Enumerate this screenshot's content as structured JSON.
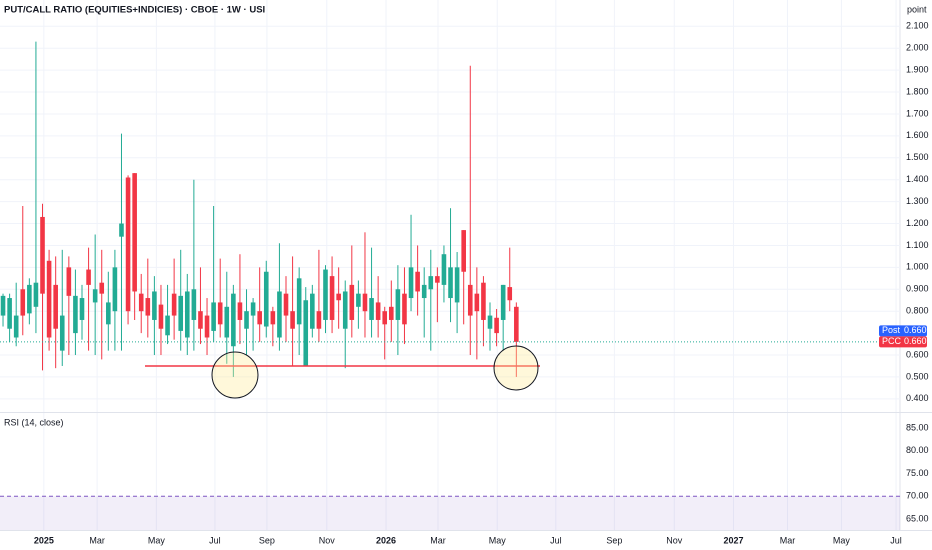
{
  "chart_data": [
    {
      "type": "candlestick",
      "title": "PUT/CALL RATIO (EQUITIES+INDICIES) · CBOE · 1W · USI",
      "y_unit": "point",
      "x": [
        0,
        1,
        2,
        3,
        4,
        5,
        6,
        7,
        8,
        9,
        10,
        11,
        12,
        13,
        14,
        15,
        16,
        17,
        18,
        19,
        20,
        21,
        22,
        23,
        24,
        25,
        26,
        27,
        28,
        29,
        30,
        31,
        32,
        33,
        34,
        35,
        36,
        37,
        38,
        39,
        40,
        41,
        42,
        43,
        44,
        45,
        46,
        47,
        48,
        49,
        50,
        51,
        52,
        53,
        54,
        55,
        56,
        57,
        58,
        59,
        60,
        61,
        62,
        63,
        64,
        65,
        66,
        67,
        68,
        69,
        70,
        71,
        72,
        73,
        74,
        75,
        76,
        77,
        78
      ],
      "open": [
        0.78,
        0.72,
        0.68,
        0.9,
        0.79,
        0.82,
        1.23,
        1.03,
        0.92,
        0.62,
        1.0,
        0.7,
        0.76,
        0.99,
        0.84,
        0.93,
        0.74,
        0.8,
        1.14,
        1.41,
        1.43,
        0.88,
        0.86,
        0.76,
        0.83,
        0.69,
        0.88,
        0.71,
        0.68,
        0.76,
        0.8,
        0.78,
        0.71,
        0.84,
        0.68,
        0.64,
        0.84,
        0.72,
        0.78,
        0.8,
        0.73,
        0.8,
        0.68,
        0.88,
        0.8,
        0.74,
        0.55,
        0.72,
        0.8,
        0.76,
        0.96,
        0.88,
        0.72,
        0.92,
        0.82,
        0.88,
        0.76,
        0.84,
        0.8,
        0.82,
        0.76,
        0.88,
        0.86,
        0.98,
        0.86,
        0.9,
        0.96,
        0.92,
        0.86,
        0.84,
        1.17,
        0.92,
        0.88,
        0.93,
        0.72,
        0.77,
        0.76,
        0.91,
        0.82
      ],
      "high": [
        0.88,
        0.88,
        0.93,
        1.28,
        0.95,
        2.03,
        1.29,
        1.08,
        1.05,
        1.08,
        1.05,
        0.99,
        0.92,
        1.09,
        1.15,
        1.08,
        0.98,
        1.08,
        1.61,
        1.42,
        1.43,
        0.97,
        1.04,
        0.96,
        0.92,
        0.92,
        1.04,
        1.08,
        0.97,
        1.4,
        1.0,
        0.86,
        1.28,
        1.04,
        0.98,
        0.92,
        1.06,
        0.9,
        0.86,
        1.0,
        1.03,
        0.82,
        1.11,
        0.96,
        1.05,
        1.0,
        0.91,
        0.92,
        1.08,
        1.01,
        1.05,
        1.0,
        0.94,
        1.1,
        0.94,
        1.16,
        1.09,
        0.96,
        0.82,
        0.94,
        1.01,
        1.0,
        1.24,
        1.1,
        1.0,
        1.08,
        1.0,
        1.1,
        1.27,
        1.07,
        1.17,
        1.92,
        1.0,
        0.96,
        0.84,
        0.81,
        0.92,
        1.09,
        0.84
      ],
      "low": [
        0.73,
        0.66,
        0.64,
        0.69,
        0.74,
        0.7,
        0.53,
        0.62,
        0.54,
        0.55,
        0.6,
        0.6,
        0.67,
        0.62,
        0.6,
        0.58,
        0.62,
        0.62,
        0.62,
        0.74,
        0.76,
        0.7,
        0.68,
        0.6,
        0.6,
        0.65,
        0.67,
        0.62,
        0.6,
        0.62,
        0.65,
        0.6,
        0.66,
        0.68,
        0.56,
        0.5,
        0.65,
        0.6,
        0.62,
        0.66,
        0.68,
        0.64,
        0.62,
        0.66,
        0.55,
        0.6,
        0.55,
        0.68,
        0.66,
        0.7,
        0.7,
        0.72,
        0.54,
        0.68,
        0.72,
        0.68,
        0.68,
        0.68,
        0.58,
        0.66,
        0.6,
        0.65,
        0.8,
        0.78,
        0.68,
        0.62,
        0.75,
        0.84,
        0.75,
        0.7,
        0.74,
        0.6,
        0.58,
        0.64,
        0.62,
        0.64,
        0.62,
        0.8,
        0.5
      ],
      "close": [
        0.87,
        0.86,
        0.78,
        0.78,
        0.92,
        0.93,
        0.88,
        0.68,
        0.72,
        0.78,
        0.87,
        0.87,
        0.86,
        0.92,
        0.9,
        0.88,
        0.84,
        1.0,
        1.2,
        0.8,
        0.89,
        0.8,
        0.78,
        0.89,
        0.72,
        0.78,
        0.78,
        0.87,
        0.89,
        0.9,
        0.72,
        0.68,
        0.84,
        0.74,
        0.82,
        0.88,
        0.76,
        0.8,
        0.84,
        0.74,
        0.98,
        0.74,
        0.89,
        0.78,
        0.72,
        0.95,
        0.85,
        0.88,
        0.72,
        0.99,
        0.76,
        0.85,
        0.89,
        0.76,
        0.88,
        0.8,
        0.86,
        0.76,
        0.74,
        0.76,
        0.9,
        0.74,
        1.0,
        0.89,
        0.92,
        0.96,
        0.93,
        1.06,
        1.0,
        1.0,
        0.98,
        0.78,
        0.8,
        0.76,
        0.78,
        0.7,
        0.92,
        0.85,
        0.66
      ],
      "up_color": "#22ab94",
      "down_color": "#f23645",
      "xlim": [
        -0.46,
        136.3
      ],
      "xticks": [
        {
          "value": 6.2,
          "label": "2025"
        },
        {
          "value": 14.3,
          "label": "Mar"
        },
        {
          "value": 23.3,
          "label": "May"
        },
        {
          "value": 32.2,
          "label": "Jul"
        },
        {
          "value": 40.1,
          "label": "Sep"
        },
        {
          "value": 49.2,
          "label": "Nov"
        },
        {
          "value": 58.2,
          "label": "2026"
        },
        {
          "value": 66.1,
          "label": "Mar"
        },
        {
          "value": 75.1,
          "label": "May"
        },
        {
          "value": 84.0,
          "label": "Jul"
        },
        {
          "value": 92.9,
          "label": "Sep"
        },
        {
          "value": 102.0,
          "label": "Nov"
        },
        {
          "value": 111.0,
          "label": "2027"
        },
        {
          "value": 119.2,
          "label": "Mar"
        },
        {
          "value": 127.4,
          "label": "May"
        },
        {
          "value": 135.7,
          "label": "Jul"
        }
      ],
      "ylim": [
        0.34,
        2.22
      ],
      "yticks": [
        {
          "value": 0.4,
          "label": "0.400"
        },
        {
          "value": 0.5,
          "label": "0.500"
        },
        {
          "value": 0.6,
          "label": "0.600"
        },
        {
          "value": 0.8,
          "label": "0.800"
        },
        {
          "value": 0.9,
          "label": "0.900"
        },
        {
          "value": 1.0,
          "label": "1.000"
        },
        {
          "value": 1.1,
          "label": "1.100"
        },
        {
          "value": 1.2,
          "label": "1.200"
        },
        {
          "value": 1.3,
          "label": "1.300"
        },
        {
          "value": 1.4,
          "label": "1.400"
        },
        {
          "value": 1.5,
          "label": "1.500"
        },
        {
          "value": 1.6,
          "label": "1.600"
        },
        {
          "value": 1.7,
          "label": "1.700"
        },
        {
          "value": 1.8,
          "label": "1.800"
        },
        {
          "value": 1.9,
          "label": "1.900"
        },
        {
          "value": 2.0,
          "label": "2.000"
        },
        {
          "value": 2.1,
          "label": "2.100"
        }
      ],
      "grid": true,
      "price_labels": [
        {
          "name": "Post",
          "value": 0.66,
          "label": "0.660",
          "color": "#2962ff"
        },
        {
          "name": "PCC",
          "value": 0.66,
          "label": "0.660",
          "color": "#f23645"
        }
      ]
    },
    {
      "type": "rsi",
      "title": "RSI (14, close)",
      "ylim": [
        62.6,
        88.3
      ],
      "yticks": [
        {
          "value": 65,
          "label": "65.00"
        },
        {
          "value": 70,
          "label": "70.00"
        },
        {
          "value": 75,
          "label": "75.00"
        },
        {
          "value": 80,
          "label": "80.00"
        },
        {
          "value": 85,
          "label": "85.00"
        }
      ],
      "band_color": "#7e57c2"
    }
  ]
}
